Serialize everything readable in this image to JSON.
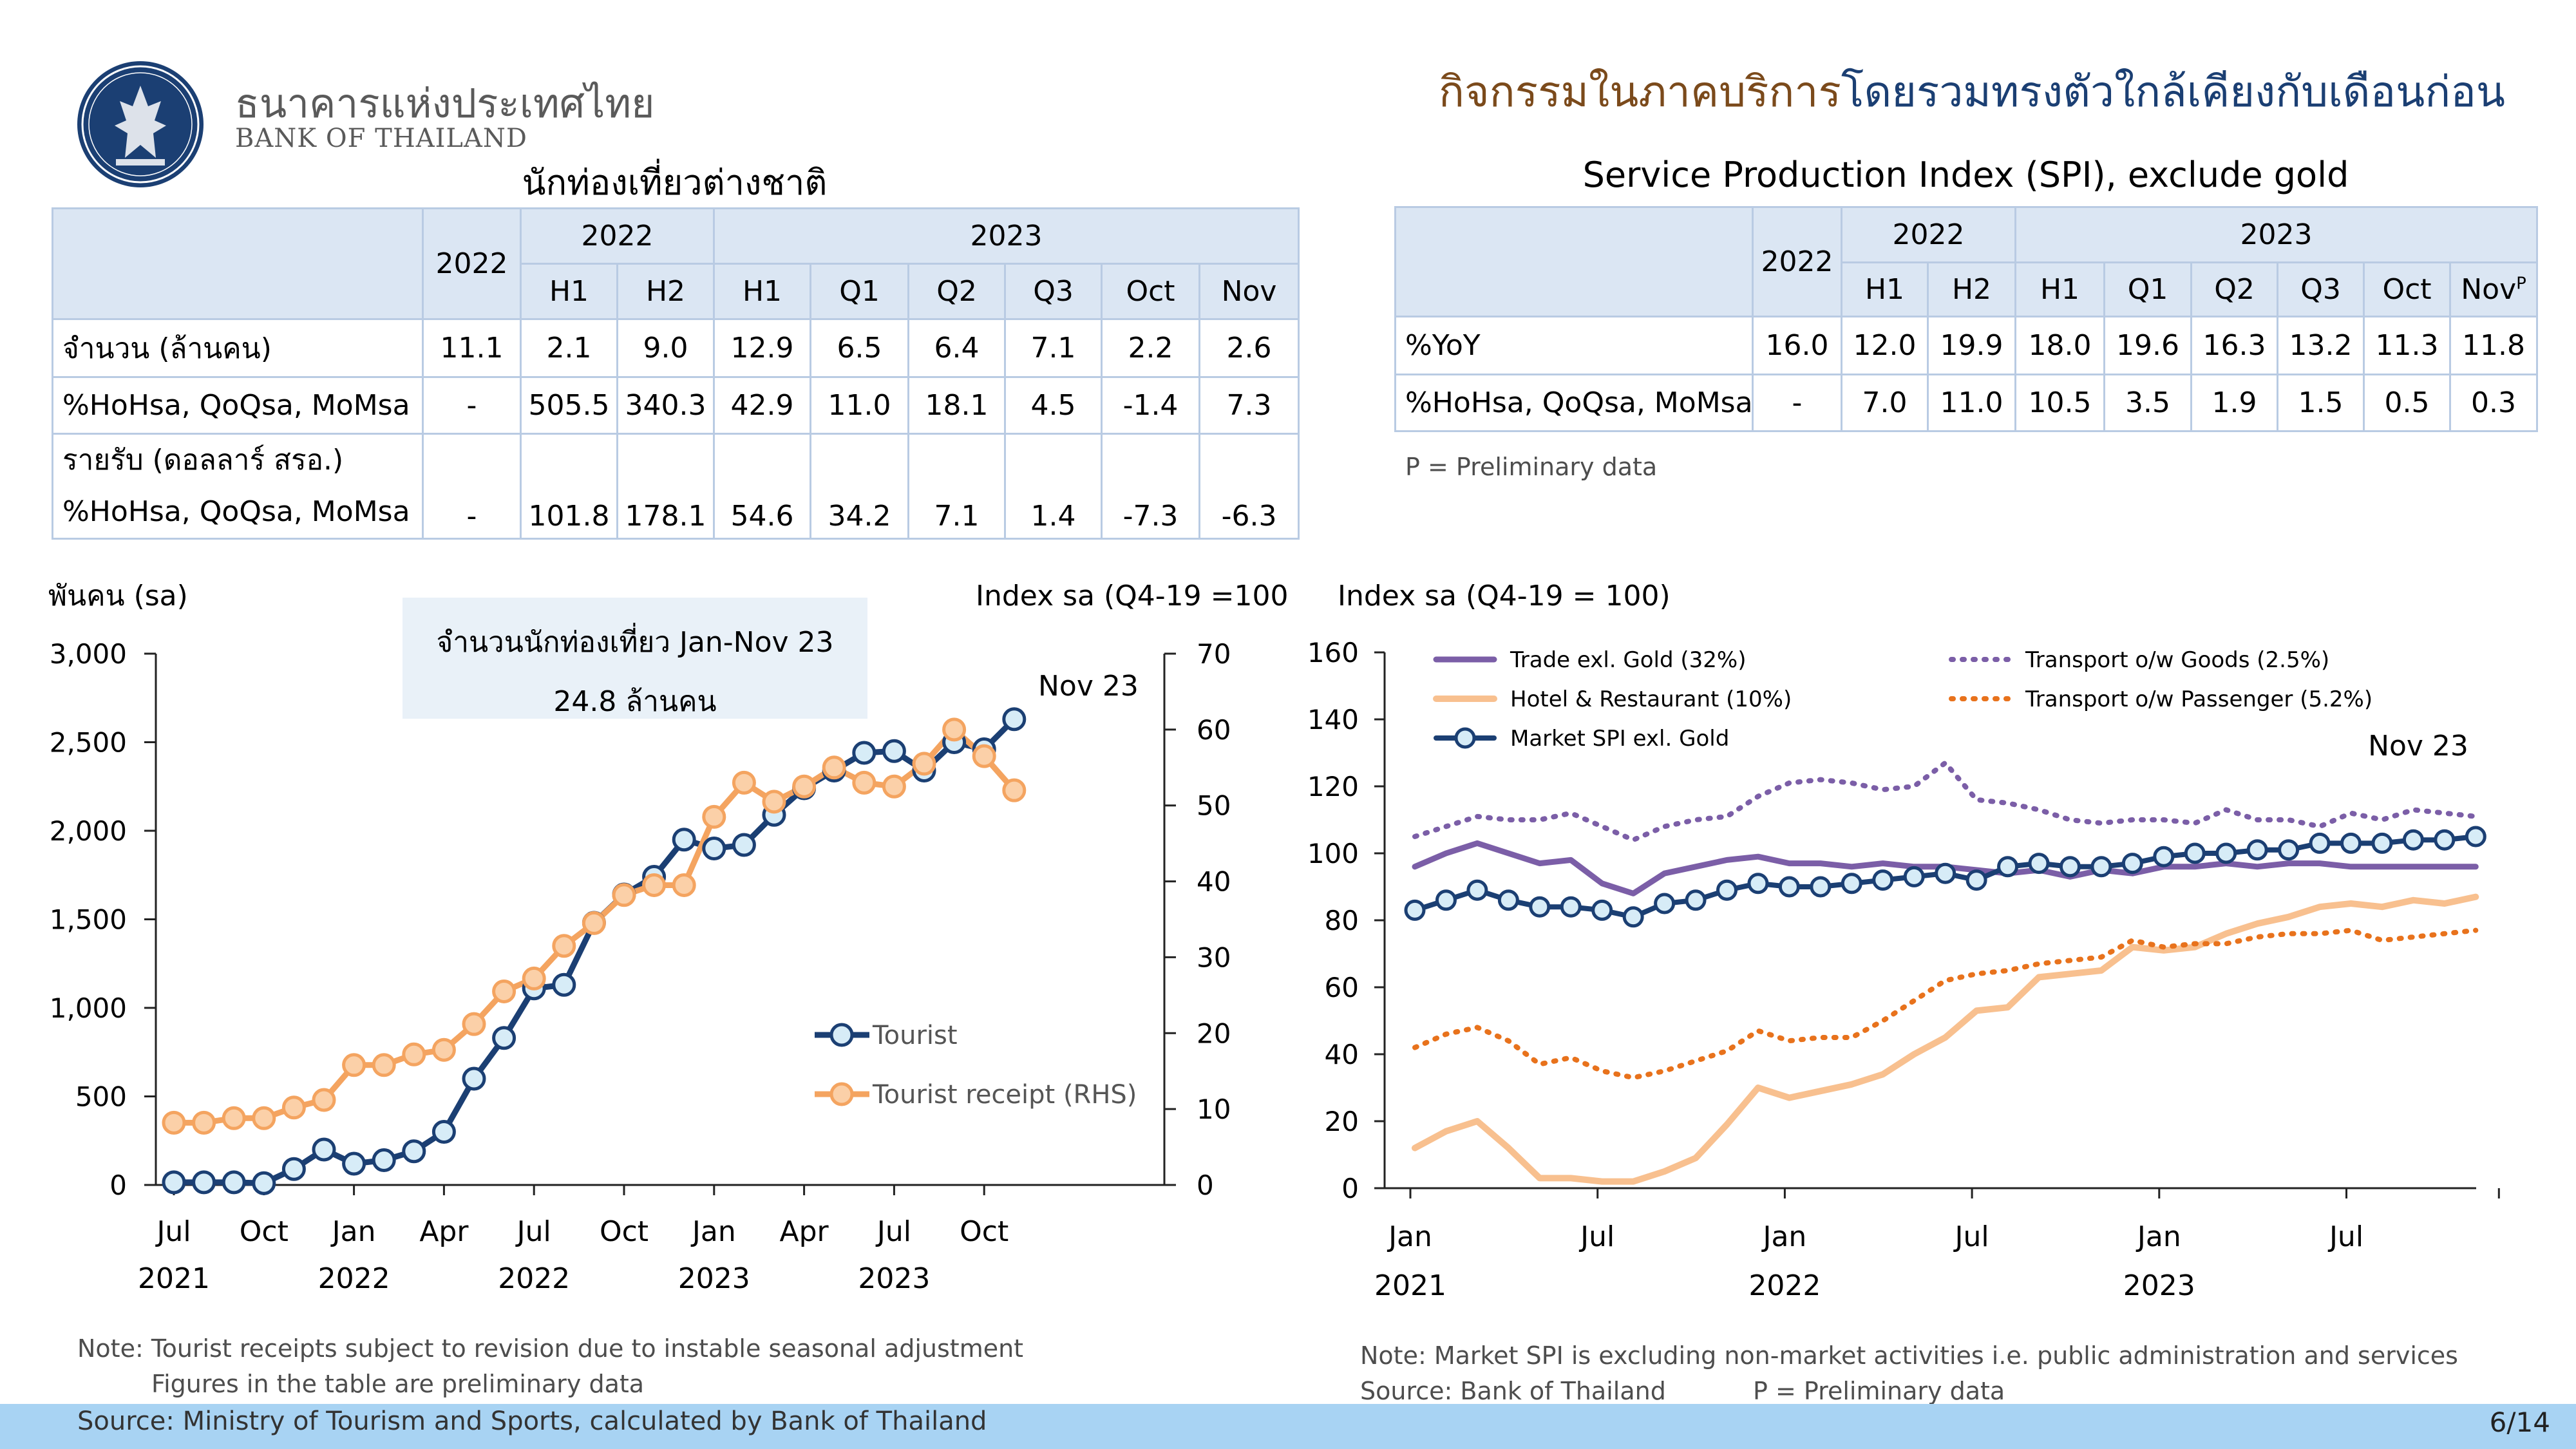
{
  "header": {
    "bank_name_th": "ธนาคารแห่งประเทศไทย",
    "bank_name_en": "BANK OF THAILAND",
    "headline_part1": "กิจกรรมในภาคบริการ",
    "headline_part2": "โดยรวมทรงตัวใกล้เคียงกับเดือนก่อน"
  },
  "colors": {
    "navy": "#1b3f73",
    "orange": "#f4a460",
    "purple": "#7b5ea7",
    "peach": "#f8c08f",
    "dorange": "#e8721c",
    "light": "#d7ecf7",
    "header_fill": "#dbe6f3",
    "footer": "#a8d3f3"
  },
  "tourist_table": {
    "title": "นักท่องเที่ยวต่างชาติ",
    "corner_year": "2022",
    "group_2022": "2022",
    "group_2023": "2023",
    "columns": [
      "H1",
      "H2",
      "H1",
      "Q1",
      "Q2",
      "Q3",
      "Oct",
      "Nov"
    ],
    "rows": [
      {
        "label": "จำนวน (ล้านคน)",
        "cells": [
          "11.1",
          "2.1",
          "9.0",
          "12.9",
          "6.5",
          "6.4",
          "7.1",
          "2.2",
          "2.6"
        ]
      },
      {
        "label": " %HoHsa, QoQsa, MoMsa",
        "cells": [
          "-",
          "505.5",
          "340.3",
          "42.9",
          "11.0",
          "18.1",
          "4.5",
          "-1.4",
          "7.3"
        ]
      }
    ],
    "receipt_label": "รายรับ (ดอลลาร์ สรอ.)",
    "receipt_row": {
      "label": "%HoHsa, QoQsa, MoMsa",
      "cells": [
        "-",
        "101.8",
        "178.1",
        "54.6",
        "34.2",
        "7.1",
        "1.4",
        "-7.3",
        "-6.3"
      ]
    }
  },
  "spi_table": {
    "title": "Service Production Index (SPI), exclude gold",
    "corner_year": "2022",
    "group_2022": "2022",
    "group_2023": "2023",
    "columns": [
      "H1",
      "H2",
      "H1",
      "Q1",
      "Q2",
      "Q3",
      "Oct",
      "Nov"
    ],
    "nov_sup": "P",
    "rows": [
      {
        "label": "%YoY",
        "cells": [
          "16.0",
          "12.0",
          "19.9",
          "18.0",
          "19.6",
          "16.3",
          "13.2",
          "11.3",
          "11.8"
        ]
      },
      {
        "label": "%HoHsa, QoQsa, MoMsa",
        "cells": [
          "-",
          "7.0",
          "11.0",
          "10.5",
          "3.5",
          "1.9",
          "1.5",
          "0.5",
          "0.3"
        ]
      }
    ],
    "footnote": "P = Preliminary data"
  },
  "chart_data": [
    {
      "type": "line",
      "title": "",
      "ylabel_left": "พันคน (sa)",
      "ylabel_right": "Index sa (Q4-19 =100)",
      "ylim": [
        0,
        3000
      ],
      "ylim_right": [
        0,
        70
      ],
      "yticks": [
        "0",
        "500",
        "1,000",
        "1,500",
        "2,000",
        "2,500",
        "3,000"
      ],
      "yticks_right": [
        "0",
        "10",
        "20",
        "30",
        "40",
        "50",
        "60",
        "70"
      ],
      "xticks": [
        {
          "i": 0,
          "month": "Jul",
          "year": "2021"
        },
        {
          "i": 3,
          "month": "Oct",
          "year": ""
        },
        {
          "i": 6,
          "month": "Jan",
          "year": "2022"
        },
        {
          "i": 9,
          "month": "Apr",
          "year": ""
        },
        {
          "i": 12,
          "month": "Jul",
          "year": "2022"
        },
        {
          "i": 15,
          "month": "Oct",
          "year": ""
        },
        {
          "i": 18,
          "month": "Jan",
          "year": "2023"
        },
        {
          "i": 21,
          "month": "Apr",
          "year": ""
        },
        {
          "i": 24,
          "month": "Jul",
          "year": "2023"
        },
        {
          "i": 27,
          "month": "Oct",
          "year": ""
        }
      ],
      "x_count": 29,
      "series": [
        {
          "name": "Tourist",
          "axis": "left",
          "values": [
            15,
            15,
            15,
            10,
            90,
            200,
            120,
            140,
            190,
            300,
            600,
            830,
            1110,
            1130,
            1480,
            1640,
            1740,
            1950,
            1900,
            1920,
            2090,
            2240,
            2340,
            2440,
            2450,
            2340,
            2500,
            2460,
            2630
          ]
        },
        {
          "name": "Tourist receipt (RHS)",
          "axis": "right",
          "values": [
            8.2,
            8.2,
            8.8,
            8.8,
            10.2,
            11.2,
            15.8,
            15.8,
            17.2,
            17.8,
            21.2,
            25.5,
            27.2,
            31.5,
            34.5,
            38.2,
            39.5,
            39.5,
            48.5,
            53.0,
            50.5,
            52.5,
            55.0,
            53.0,
            52.5,
            55.5,
            60.0,
            56.5,
            52.0
          ]
        }
      ],
      "annotation": "Nov 23",
      "box_line1": "จำนวนนักท่องเที่ยว Jan-Nov 23",
      "box_line2": "24.8 ล้านคน"
    },
    {
      "type": "line",
      "ylabel": "Index sa (Q4-19 = 100)",
      "ylim": [
        0,
        160
      ],
      "yticks": [
        "0",
        "20",
        "40",
        "60",
        "80",
        "100",
        "120",
        "140",
        "160"
      ],
      "xticks": [
        {
          "i": 0,
          "month": "Jan",
          "year": "2021"
        },
        {
          "i": 6,
          "month": "Jul",
          "year": ""
        },
        {
          "i": 12,
          "month": "Jan",
          "year": "2022"
        },
        {
          "i": 18,
          "month": "Jul",
          "year": ""
        },
        {
          "i": 24,
          "month": "Jan",
          "year": "2023"
        },
        {
          "i": 30,
          "month": "Jul",
          "year": ""
        }
      ],
      "x_count": 35,
      "series": [
        {
          "name": "Trade exl. Gold (32%)",
          "style": "solid",
          "values": [
            96,
            100,
            103,
            100,
            97,
            98,
            91,
            88,
            94,
            96,
            98,
            99,
            97,
            97,
            96,
            97,
            96,
            96,
            95,
            94,
            95,
            93,
            95,
            94,
            96,
            96,
            97,
            96,
            97,
            97,
            96,
            96,
            96,
            96,
            96
          ]
        },
        {
          "name": "Transport o/w Goods (2.5%)",
          "style": "dotted",
          "values": [
            105,
            108,
            111,
            110,
            110,
            112,
            108,
            104,
            108,
            110,
            111,
            117,
            121,
            122,
            121,
            119,
            120,
            127,
            116,
            115,
            113,
            110,
            109,
            110,
            110,
            109,
            113,
            110,
            110,
            108,
            112,
            110,
            113,
            112,
            111
          ]
        },
        {
          "name": "Hotel & Restaurant (10%)",
          "style": "solid",
          "values": [
            12,
            17,
            20,
            12,
            3,
            3,
            2,
            2,
            5,
            9,
            19,
            30,
            27,
            29,
            31,
            34,
            40,
            45,
            53,
            54,
            63,
            64,
            65,
            72,
            71,
            72,
            76,
            79,
            81,
            84,
            85,
            84,
            86,
            85,
            87
          ]
        },
        {
          "name": "Transport o/w Passenger (5.2%)",
          "style": "dotted",
          "values": [
            42,
            46,
            48,
            44,
            37,
            39,
            35,
            33,
            35,
            38,
            41,
            47,
            44,
            45,
            45,
            50,
            56,
            62,
            64,
            65,
            67,
            68,
            69,
            74,
            72,
            73,
            73,
            75,
            76,
            76,
            77,
            74,
            75,
            76,
            77
          ]
        },
        {
          "name": "Market SPI exl. Gold",
          "style": "marker",
          "values": [
            83,
            86,
            89,
            86,
            84,
            84,
            83,
            81,
            85,
            86,
            89,
            91,
            90,
            90,
            91,
            92,
            93,
            94,
            92,
            96,
            97,
            96,
            96,
            97,
            99,
            100,
            100,
            101,
            101,
            103,
            103,
            103,
            104,
            104,
            105
          ]
        }
      ],
      "annotation": "Nov 23"
    }
  ],
  "notes": {
    "left_note1": "Note: Tourist receipts subject to revision due to instable seasonal adjustment",
    "left_note2": "Figures in the table are preliminary data",
    "right_note1": "Note: Market SPI is excluding non-market activities i.e. public administration and services",
    "right_note2": "Source: Bank of Thailand",
    "right_note3": "P = Preliminary data"
  },
  "footer": {
    "source": "Source: Ministry of Tourism and Sports, calculated by Bank of Thailand",
    "page": "6/14"
  }
}
